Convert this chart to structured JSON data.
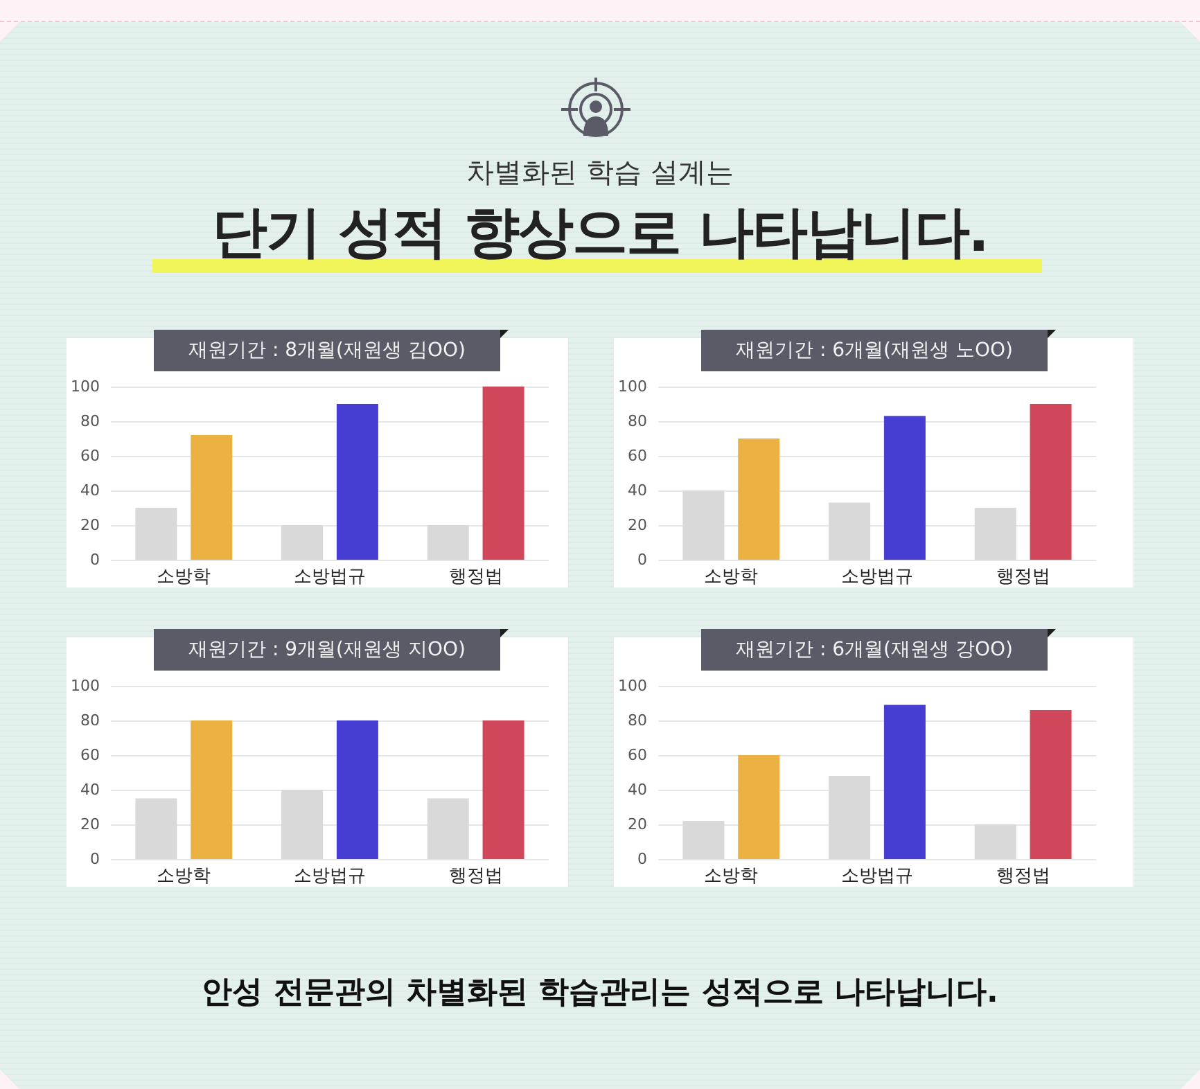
{
  "chart_data": [
    {
      "type": "other",
      "subtitle": "차별화된 학습 설계는",
      "title": "단기 성적 향상으로 나타납니다."
    },
    {
      "type": "bar",
      "title": "재원기간 : 8개월(재원생 김OO)",
      "categories": [
        "소방학",
        "소방법규",
        "행정법"
      ],
      "series": [
        {
          "color": "#d9d9d9",
          "values": [
            30,
            20,
            20
          ]
        },
        {
          "colors": [
            "#ebb142",
            "#463ed3",
            "#d0475b"
          ],
          "values": [
            72,
            90,
            100
          ]
        }
      ],
      "ylim": [
        0,
        100
      ],
      "yticks": [
        0,
        20,
        40,
        60,
        80,
        100
      ],
      "grid": "y"
    },
    {
      "type": "bar",
      "title": "재원기간 : 6개월(재원생 노OO)",
      "categories": [
        "소방학",
        "소방법규",
        "행정법"
      ],
      "series": [
        {
          "color": "#d9d9d9",
          "values": [
            40,
            33,
            30
          ]
        },
        {
          "colors": [
            "#ebb142",
            "#463ed3",
            "#d0475b"
          ],
          "values": [
            70,
            83,
            90
          ]
        }
      ],
      "ylim": [
        0,
        100
      ],
      "yticks": [
        0,
        20,
        40,
        60,
        80,
        100
      ],
      "grid": "y"
    },
    {
      "type": "bar",
      "title": "재원기간 : 9개월(재원생 지OO)",
      "categories": [
        "소방학",
        "소방법규",
        "행정법"
      ],
      "series": [
        {
          "color": "#d9d9d9",
          "values": [
            35,
            40,
            35
          ]
        },
        {
          "colors": [
            "#ebb142",
            "#463ed3",
            "#d0475b"
          ],
          "values": [
            80,
            80,
            80
          ]
        }
      ],
      "ylim": [
        0,
        100
      ],
      "yticks": [
        0,
        20,
        40,
        60,
        80,
        100
      ],
      "grid": "y"
    },
    {
      "type": "bar",
      "title": "재원기간 : 6개월(재원생 강OO)",
      "categories": [
        "소방학",
        "소방법규",
        "행정법"
      ],
      "series": [
        {
          "color": "#d9d9d9",
          "values": [
            22,
            48,
            20
          ]
        },
        {
          "colors": [
            "#ebb142",
            "#463ed3",
            "#d0475b"
          ],
          "values": [
            60,
            89,
            86
          ]
        }
      ],
      "ylim": [
        0,
        100
      ],
      "yticks": [
        0,
        20,
        40,
        60,
        80,
        100
      ],
      "grid": "y"
    },
    {
      "type": "other",
      "annotations": [
        "안성 전문관의 차별화된 학습관리는 성적으로 나타납니다."
      ]
    }
  ]
}
